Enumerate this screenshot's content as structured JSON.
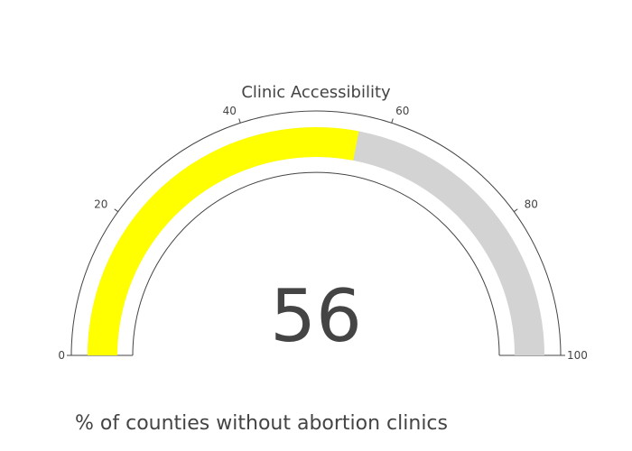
{
  "chart_data": {
    "type": "gauge",
    "title": "Clinic Accessibility",
    "value": 56,
    "value_label": "56",
    "range": [
      0,
      100
    ],
    "ticks": [
      {
        "value": 0,
        "label": "0"
      },
      {
        "value": 20,
        "label": "20"
      },
      {
        "value": 40,
        "label": "40"
      },
      {
        "value": 60,
        "label": "60"
      },
      {
        "value": 80,
        "label": "80"
      },
      {
        "value": 100,
        "label": "100"
      }
    ],
    "bar_color": "#ffff00",
    "background_color": "#d3d3d3",
    "annotation": "% of counties without abortion clinics"
  }
}
